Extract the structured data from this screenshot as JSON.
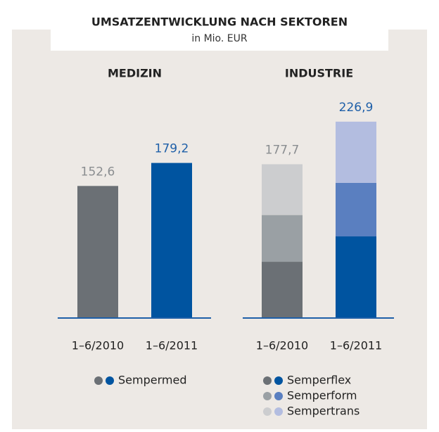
{
  "title": "UMSATZENTWICKLUNG NACH SEKTOREN",
  "subtitle": "in Mio. EUR",
  "chart_data": [
    {
      "type": "bar",
      "title": "MEDIZIN",
      "categories": [
        "1–6/2010",
        "1–6/2011"
      ],
      "label_colors": [
        "#8a8d90",
        "#1e5fa8"
      ],
      "series": [
        {
          "name": "Sempermed",
          "colors": [
            "#6b7075",
            "#0054a0"
          ],
          "values": [
            152.6,
            179.2
          ],
          "value_labels": [
            "152,6",
            "179,2"
          ]
        }
      ]
    },
    {
      "type": "stacked_bar",
      "title": "INDUSTRIE",
      "categories": [
        "1–6/2010",
        "1–6/2011"
      ],
      "label_colors": [
        "#8a8d90",
        "#1e5fa8"
      ],
      "totals": [
        177.7,
        226.9
      ],
      "total_labels": [
        "177,7",
        "226,9"
      ],
      "series": [
        {
          "name": "Semperflex",
          "colors": [
            "#6b7075",
            "#0054a0"
          ],
          "values": [
            65.0,
            94.3
          ]
        },
        {
          "name": "Semperform",
          "colors": [
            "#9aa0a4",
            "#5a7fc0"
          ],
          "values": [
            54.0,
            61.8
          ]
        },
        {
          "name": "Sempertrans",
          "colors": [
            "#cccdcf",
            "#b3bde0"
          ],
          "values": [
            58.7,
            70.8
          ]
        }
      ]
    }
  ]
}
